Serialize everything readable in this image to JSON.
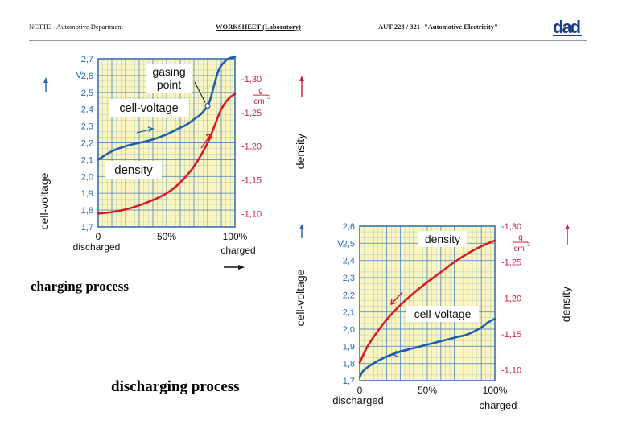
{
  "header": {
    "left": "NCTTE - Automotive Department",
    "center": "WORKSHEET (Laboratory)",
    "right": "AUT 223 / 321- \"Automotive Electricity\"",
    "logo_text": "dad"
  },
  "captions": {
    "charging": "charging process",
    "discharging": "discharging process"
  },
  "colors": {
    "voltage": "#1f5fa8",
    "density": "#d41a2b",
    "grid_bg": "#fbf6c0",
    "grid_line": "#4a86c4",
    "axis_blue": "#2a6ab2",
    "axis_red": "#cc2244"
  },
  "chart_data": [
    {
      "type": "line",
      "title": "charging process",
      "x_ticks": [
        "0",
        "50%",
        "100%"
      ],
      "x_under_start": "discharged",
      "x_under_end": "charged",
      "xlim": [
        0,
        100
      ],
      "left_axis": {
        "label": "cell-voltage",
        "unit": "V",
        "ylim": [
          1.7,
          2.7
        ],
        "ticks": [
          "1,7",
          "1,8",
          "1,9",
          "2,0",
          "2,1",
          "2,2",
          "2,3",
          "2,4",
          "2,5",
          "2,6",
          "2,7"
        ]
      },
      "right_axis": {
        "label": "density",
        "unit_num": "g",
        "unit_den": "cm",
        "unit_exp": "3",
        "ylim": [
          1.08,
          1.33
        ],
        "ticks": [
          "-1,10",
          "-1,15",
          "-1,20",
          "-1,25",
          "-1,30"
        ]
      },
      "series": [
        {
          "name": "cell-voltage",
          "axis": "left",
          "x": [
            0,
            10,
            20,
            30,
            40,
            50,
            55,
            60,
            65,
            70,
            75,
            80,
            82,
            84,
            86,
            88,
            90,
            95,
            100
          ],
          "y": [
            2.1,
            2.15,
            2.18,
            2.2,
            2.22,
            2.25,
            2.27,
            2.29,
            2.31,
            2.34,
            2.37,
            2.42,
            2.46,
            2.52,
            2.58,
            2.63,
            2.66,
            2.7,
            2.71
          ]
        },
        {
          "name": "density",
          "axis": "right",
          "x": [
            0,
            10,
            20,
            30,
            40,
            50,
            60,
            70,
            80,
            85,
            90,
            95,
            100
          ],
          "y": [
            1.1,
            1.102,
            1.106,
            1.112,
            1.12,
            1.13,
            1.146,
            1.17,
            1.205,
            1.23,
            1.255,
            1.27,
            1.278
          ]
        }
      ],
      "annotations": {
        "gasing_l1": "gasing",
        "gasing_l2": "point",
        "voltage_label": "cell-voltage",
        "density_label": "density",
        "gasing_x": 80
      }
    },
    {
      "type": "line",
      "title": "discharging process",
      "x_ticks": [
        "0",
        "50%",
        "100%"
      ],
      "x_under_start": "discharged",
      "x_under_end": "charged",
      "xlim": [
        0,
        100
      ],
      "left_axis": {
        "label": "cell-voltage",
        "unit": "V",
        "ylim": [
          1.7,
          2.6
        ],
        "ticks": [
          "1,7",
          "1,8",
          "1,9",
          "2,0",
          "2,1",
          "2,2",
          "2,3",
          "2,4",
          "2,5",
          "2,6"
        ]
      },
      "right_axis": {
        "label": "density",
        "unit_num": "g",
        "unit_den": "cm",
        "unit_exp": "3",
        "ylim": [
          1.085,
          1.3
        ],
        "ticks": [
          "-1,10",
          "-1,15",
          "-1,20",
          "-1,25",
          "-1,30"
        ]
      },
      "series": [
        {
          "name": "cell-voltage",
          "axis": "left",
          "x": [
            0,
            3,
            10,
            20,
            30,
            40,
            50,
            60,
            70,
            80,
            90,
            95,
            100
          ],
          "y": [
            1.72,
            1.76,
            1.8,
            1.84,
            1.87,
            1.89,
            1.91,
            1.93,
            1.95,
            1.97,
            2.01,
            2.04,
            2.06
          ]
        },
        {
          "name": "density",
          "axis": "right",
          "x": [
            0,
            5,
            10,
            20,
            30,
            40,
            50,
            60,
            70,
            80,
            90,
            100
          ],
          "y": [
            1.11,
            1.13,
            1.145,
            1.17,
            1.19,
            1.207,
            1.222,
            1.236,
            1.25,
            1.262,
            1.272,
            1.28
          ]
        }
      ],
      "annotations": {
        "density_label": "density",
        "voltage_label": "cell-voltage"
      }
    }
  ]
}
